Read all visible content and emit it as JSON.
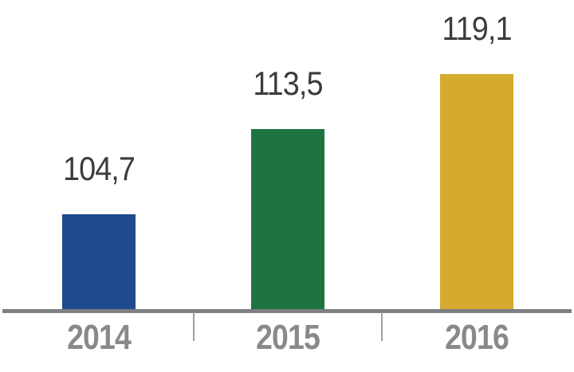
{
  "chart_data": {
    "type": "bar",
    "categories": [
      "2014",
      "2015",
      "2016"
    ],
    "values": [
      104.7,
      113.5,
      119.1
    ],
    "value_labels": [
      "104,7",
      "113,5",
      "119,1"
    ],
    "title": "",
    "xlabel": "",
    "ylabel": "",
    "ylim": [
      95,
      122
    ],
    "grid": false,
    "legend": false,
    "bar_colors": [
      "#1F4A8C",
      "#1E7441",
      "#D4AB2E"
    ],
    "axis_line_color": "#7D7F82",
    "tick_color": "#9EA0A3",
    "value_label_color": "#3C3C3E",
    "category_label_color": "#87898C",
    "background_color": "#FFFFFF"
  }
}
